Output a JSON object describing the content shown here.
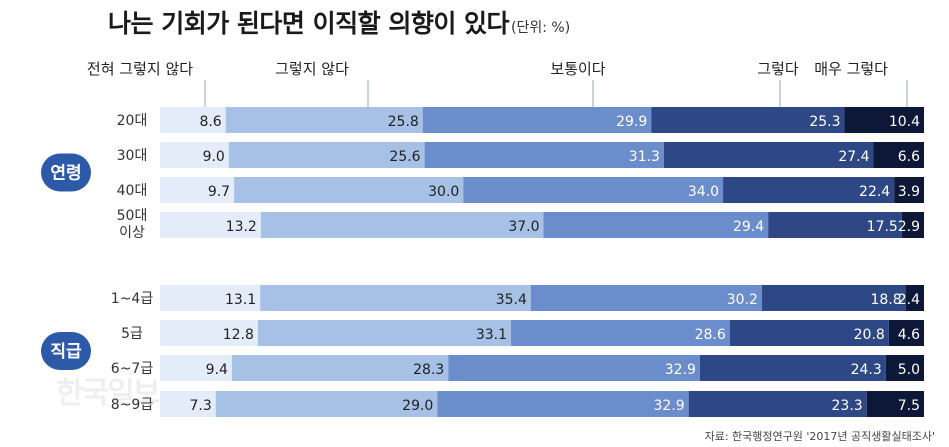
{
  "title": "나는 기회가 된다면 이직할 의향이 있다",
  "unit": "(단위: %)",
  "source": "자료: 한국행정연구원 '2017년 공직생활실태조사'",
  "watermark": "한국일보",
  "colors": [
    "#e3ecf8",
    "#a6c0e6",
    "#6b8dcb",
    "#2e4886",
    "#0d1838"
  ],
  "chart_data": {
    "type": "bar",
    "stacked": true,
    "orientation": "horizontal",
    "legend_placement": "top",
    "categories": [
      "전혀 그렇지 않다",
      "그렇지 않다",
      "보통이다",
      "그렇다",
      "매우 그렇다"
    ],
    "groups": [
      {
        "label": "연령",
        "rows": [
          {
            "label": [
              "20대"
            ],
            "values": [
              8.6,
              25.8,
              29.9,
              25.3,
              10.4
            ]
          },
          {
            "label": [
              "30대"
            ],
            "values": [
              9.0,
              25.6,
              31.3,
              27.4,
              6.6
            ]
          },
          {
            "label": [
              "40대"
            ],
            "values": [
              9.7,
              30.0,
              34.0,
              22.4,
              3.9
            ]
          },
          {
            "label": [
              "50대",
              "이상"
            ],
            "values": [
              13.2,
              37.0,
              29.4,
              17.5,
              2.9
            ]
          }
        ]
      },
      {
        "label": "직급",
        "rows": [
          {
            "label": [
              "1~4급"
            ],
            "values": [
              13.1,
              35.4,
              30.2,
              18.8,
              2.4
            ]
          },
          {
            "label": [
              "5급"
            ],
            "values": [
              12.8,
              33.1,
              28.6,
              20.8,
              4.6
            ]
          },
          {
            "label": [
              "6~7급"
            ],
            "values": [
              9.4,
              28.3,
              32.9,
              24.3,
              5.0
            ]
          },
          {
            "label": [
              "8~9급"
            ],
            "values": [
              7.3,
              29.0,
              32.9,
              23.3,
              7.5
            ]
          }
        ]
      }
    ]
  }
}
